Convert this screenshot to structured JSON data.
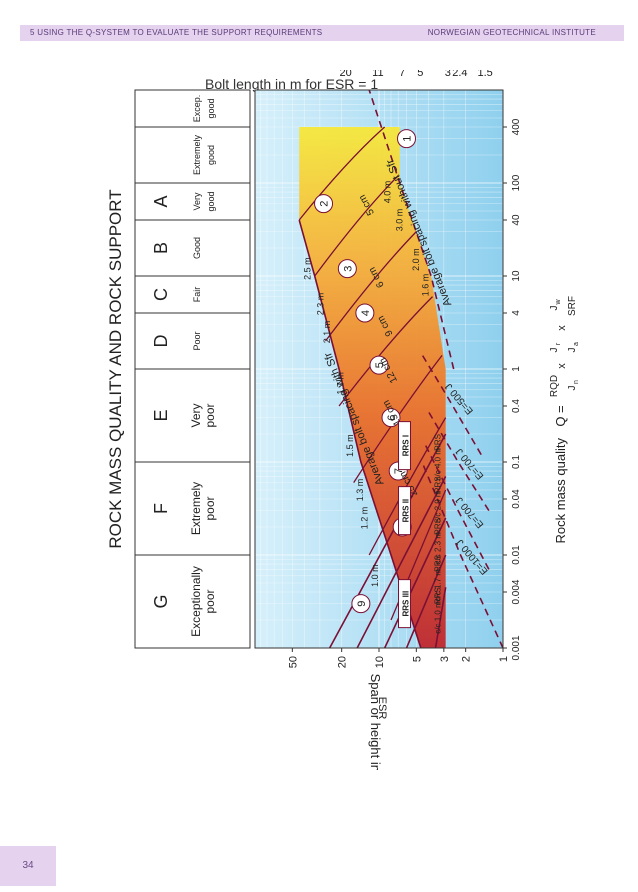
{
  "header": {
    "left": "5  USING THE Q-SYSTEM TO EVALUATE THE SUPPORT REQUIREMENTS",
    "right": "NORWEGIAN GEOTECHNICAL INSTITUTE"
  },
  "page_number": "34",
  "chart_data": {
    "type": "line",
    "title": "ROCK MASS QUALITY AND ROCK SUPPORT",
    "xlabel": "Rock mass quality",
    "formula": {
      "prefix": "Q =",
      "t1_num": "RQD",
      "t1_den": "J",
      "t1_den_sub": "n",
      "x": "x",
      "t2_num": "J",
      "t2_num_sub": "r",
      "t2_den": "J",
      "t2_den_sub": "a",
      "t3_num": "J",
      "t3_num_sub": "w",
      "t3_den": "SRF"
    },
    "ylabel": "Span or height in m",
    "ylabel_denominator": "ESR",
    "top_axis_label": "Bolt length in m for ESR = 1",
    "x_scale": "log",
    "y_scale": "log",
    "xlim": [
      0.001,
      1000
    ],
    "ylim": [
      1,
      100
    ],
    "x_ticks": [
      {
        "value": 0.001,
        "label": "0.001"
      },
      {
        "value": 0.004,
        "label": "0.004"
      },
      {
        "value": 0.01,
        "label": "0.01"
      },
      {
        "value": 0.04,
        "label": "0.04"
      },
      {
        "value": 0.1,
        "label": "0.1"
      },
      {
        "value": 0.4,
        "label": "0.4"
      },
      {
        "value": 1,
        "label": "1"
      },
      {
        "value": 4,
        "label": "4"
      },
      {
        "value": 10,
        "label": "10"
      },
      {
        "value": 40,
        "label": "40"
      },
      {
        "value": 100,
        "label": "100"
      },
      {
        "value": 400,
        "label": "400"
      }
    ],
    "y_ticks": [
      {
        "value": 1,
        "label": "1"
      },
      {
        "value": 2,
        "label": "2"
      },
      {
        "value": 3,
        "label": "3"
      },
      {
        "value": 5,
        "label": "5"
      },
      {
        "value": 10,
        "label": "10"
      },
      {
        "value": 20,
        "label": "20"
      },
      {
        "value": 50,
        "label": "50"
      }
    ],
    "bolt_length_ticks": [
      {
        "y": 1.5,
        "label": "1.5"
      },
      {
        "y": 2.4,
        "label": "2.4"
      },
      {
        "y": 3,
        "label": "3"
      },
      {
        "y": 5,
        "label": "5"
      },
      {
        "y": 7,
        "label": "7"
      },
      {
        "y": 11,
        "label": "11"
      },
      {
        "y": 20,
        "label": "20"
      }
    ],
    "rock_classes": [
      {
        "letter": "G",
        "desc": [
          "Exceptionally",
          "poor"
        ],
        "q_range": [
          0.001,
          0.01
        ]
      },
      {
        "letter": "F",
        "desc": [
          "Extremely",
          "poor"
        ],
        "q_range": [
          0.01,
          0.1
        ]
      },
      {
        "letter": "E",
        "desc": [
          "Very",
          "poor"
        ],
        "q_range": [
          0.1,
          1
        ]
      },
      {
        "letter": "D",
        "desc": [
          "Poor"
        ],
        "q_range": [
          1,
          4
        ]
      },
      {
        "letter": "C",
        "desc": [
          "Fair"
        ],
        "q_range": [
          4,
          10
        ]
      },
      {
        "letter": "B",
        "desc": [
          "Good"
        ],
        "q_range": [
          10,
          40
        ]
      },
      {
        "letter": "A",
        "desc": [
          "Very",
          "good"
        ],
        "q_range": [
          40,
          100
        ]
      },
      {
        "letter": "",
        "desc": [
          "Extremely",
          "good"
        ],
        "q_range": [
          100,
          400
        ]
      },
      {
        "letter": "",
        "desc": [
          "Excep.",
          "good"
        ],
        "q_range": [
          400,
          1000
        ]
      }
    ],
    "series": [
      {
        "name": "Average bolt spacing with Sfr",
        "style": "solid",
        "x": [
          0.001,
          0.01,
          0.1,
          1,
          10,
          40
        ],
        "y": [
          4.6,
          8,
          14,
          21,
          33,
          44
        ]
      },
      {
        "name": "Average bolt spacing without Sfr",
        "style": "dashed",
        "x": [
          1,
          10,
          100,
          1000
        ],
        "y": [
          2.5,
          3.8,
          6.8,
          12
        ]
      },
      {
        "name": "E=1000 J",
        "style": "dashed",
        "x": [
          0.001,
          0.01,
          0.1
        ],
        "y": [
          1.0,
          2.2,
          4.5
        ]
      },
      {
        "name": "E=700 J",
        "style": "dashed",
        "x": [
          0.007,
          0.03,
          0.15
        ],
        "y": [
          1.3,
          2.3,
          4.2
        ]
      },
      {
        "name": "E=700 J",
        "style": "dashed",
        "x": [
          0.03,
          0.1,
          0.35
        ],
        "y": [
          1.3,
          2.3,
          4
        ]
      },
      {
        "name": "E=500 J",
        "style": "dashed",
        "x": [
          0.12,
          0.5,
          1.5
        ],
        "y": [
          1.5,
          2.8,
          4.6
        ]
      },
      {
        "name": "c/c 1.0 m",
        "style": "solid",
        "x": [
          0.001,
          0.0045
        ],
        "y": [
          3.5,
          2.9
        ]
      },
      {
        "name": "c/c 1.7 m",
        "style": "solid",
        "x": [
          0.001,
          0.01
        ],
        "y": [
          6,
          2.9
        ]
      },
      {
        "name": "c/c 2.3 m",
        "style": "solid",
        "x": [
          0.001,
          0.025
        ],
        "y": [
          9,
          2.9
        ]
      },
      {
        "name": "c/c 2.9 m",
        "style": "solid",
        "x": [
          0.001,
          0.07
        ],
        "y": [
          15,
          2.9
        ]
      },
      {
        "name": "c/c 4.0 m",
        "style": "solid",
        "x": [
          0.001,
          0.2
        ],
        "y": [
          25,
          2.9
        ]
      }
    ],
    "support_categories": [
      {
        "num": "1",
        "label": "1"
      },
      {
        "num": "2",
        "label": "2"
      },
      {
        "num": "3",
        "label": "3"
      },
      {
        "num": "4",
        "label": "4"
      },
      {
        "num": "5",
        "label": "5"
      },
      {
        "num": "6",
        "label": "6"
      },
      {
        "num": "7",
        "label": "7"
      },
      {
        "num": "8",
        "label": "8"
      },
      {
        "num": "9",
        "label": "9"
      }
    ],
    "shotcrete_labels": [
      "5 cm",
      "6 cm",
      "9 cm",
      "12 cm",
      "15 cm",
      "25 cm"
    ],
    "bolt_spacing_sfr": [
      "1.0 m",
      "1.2 m",
      "1.3 m",
      "1.5 m",
      "1.7 m",
      "2.1 m",
      "2.3 m",
      "2.5 m"
    ],
    "bolt_spacing_nosfr": [
      "1.6 m",
      "2.0 m",
      "3.0 m",
      "4.0 m"
    ],
    "rrs_labels": [
      "RRS III",
      "RRS II",
      "RRS I"
    ],
    "rrs_rows": [
      {
        "text": "RRS",
        "cc": "c/c 1.0 m"
      },
      {
        "text": "RRS",
        "cc": "c/c 1.7 m"
      },
      {
        "text": "RRS",
        "cc": "c/c 2.3 m"
      },
      {
        "text": "RRS",
        "cc": "c/c 2.9 m"
      },
      {
        "text": "RRS",
        "cc": "c/c 4.0 m"
      }
    ],
    "colors": {
      "sky": "#8fd0ee",
      "red": "#c0272d",
      "yellow": "#f5e63a",
      "orange": "#f08a24",
      "line": "#7a1035",
      "grid": "#d9e2ea"
    }
  }
}
